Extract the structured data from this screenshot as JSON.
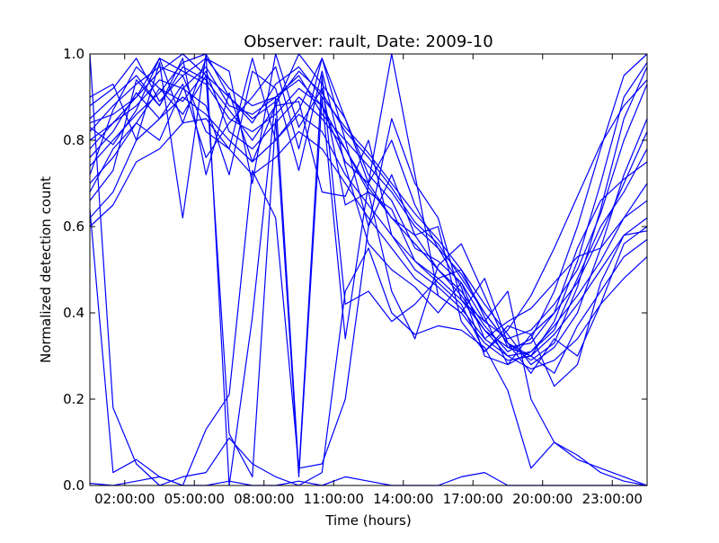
{
  "chart_data": {
    "type": "line",
    "title": "Observer: rault, Date: 2009-10",
    "xlabel": "Time (hours)",
    "ylabel": "Normalized detection count",
    "xlim": [
      0.5,
      24.5
    ],
    "ylim": [
      0,
      1
    ],
    "x_ticks": [
      {
        "x": 2,
        "label": "02:00:00"
      },
      {
        "x": 5,
        "label": "05:00:00"
      },
      {
        "x": 8,
        "label": "08:00:00"
      },
      {
        "x": 11,
        "label": "11:00:00"
      },
      {
        "x": 14,
        "label": "14:00:00"
      },
      {
        "x": 17,
        "label": "17:00:00"
      },
      {
        "x": 20,
        "label": "20:00:00"
      },
      {
        "x": 23,
        "label": "23:00:00"
      }
    ],
    "y_ticks": [
      {
        "y": 0,
        "label": "0.0"
      },
      {
        "y": 0.2,
        "label": "0.2"
      },
      {
        "y": 0.4,
        "label": "0.4"
      },
      {
        "y": 0.6,
        "label": "0.6"
      },
      {
        "y": 0.8,
        "label": "0.8"
      },
      {
        "y": 1,
        "label": "1.0"
      }
    ],
    "grid": false,
    "line_color": "#0000ff",
    "series": [
      {
        "x": [
          0.5,
          1.5,
          2.5,
          3.5,
          4.5,
          5.5,
          6.5,
          7.5,
          8.5,
          9.5,
          10.5,
          11.5,
          12.5,
          13.5,
          14.5,
          15.5,
          16.5,
          17.5,
          18.5,
          19.5,
          20.5,
          21.5,
          22.5,
          23.5,
          24.5
        ],
        "y": [
          0.82,
          0.88,
          0.93,
          0.97,
          0.95,
          0.99,
          0.92,
          0.88,
          0.9,
          0.95,
          0.86,
          0.8,
          0.74,
          0.68,
          0.6,
          0.55,
          0.49,
          0.4,
          0.33,
          0.3,
          0.38,
          0.52,
          0.7,
          0.9,
          0.98
        ]
      },
      {
        "x": [
          0.5,
          1.5,
          2.5,
          3.5,
          4.5,
          5.5,
          6.5,
          7.5,
          8.5,
          9.5,
          10.5,
          11.5,
          12.5,
          13.5,
          14.5,
          15.5,
          16.5,
          17.5,
          18.5,
          19.5,
          20.5,
          21.5,
          22.5,
          23.5,
          24.5
        ],
        "y": [
          0.78,
          0.84,
          0.9,
          0.99,
          0.96,
          0.93,
          0.85,
          0.82,
          0.86,
          0.92,
          0.88,
          0.75,
          0.7,
          0.62,
          0.58,
          0.5,
          0.45,
          0.37,
          0.31,
          0.34,
          0.45,
          0.6,
          0.78,
          0.95,
          1.0
        ]
      },
      {
        "x": [
          0.5,
          1.5,
          2.5,
          3.5,
          4.5,
          5.5,
          6.5,
          7.5,
          8.5,
          9.5,
          10.5,
          11.5,
          12.5,
          13.5,
          14.5,
          15.5,
          16.5,
          17.5,
          18.5,
          19.5,
          20.5,
          21.5,
          22.5,
          23.5,
          24.5
        ],
        "y": [
          0.74,
          0.8,
          0.86,
          0.91,
          0.98,
          1.0,
          0.9,
          0.84,
          0.93,
          0.97,
          0.9,
          0.83,
          0.77,
          0.7,
          0.63,
          0.57,
          0.5,
          0.42,
          0.35,
          0.28,
          0.32,
          0.4,
          0.55,
          0.72,
          0.85
        ]
      },
      {
        "x": [
          0.5,
          1.5,
          2.5,
          3.5,
          4.5,
          5.5,
          6.5,
          7.5,
          8.5,
          9.5,
          10.5,
          11.5,
          12.5,
          13.5,
          14.5,
          15.5,
          16.5,
          17.5,
          18.5,
          19.5,
          20.5,
          21.5,
          22.5,
          23.5,
          24.5
        ],
        "y": [
          0.85,
          0.9,
          0.95,
          0.88,
          0.97,
          0.94,
          0.87,
          0.8,
          0.88,
          1.0,
          0.93,
          0.85,
          0.72,
          0.66,
          0.55,
          0.52,
          0.47,
          0.38,
          0.34,
          0.36,
          0.42,
          0.5,
          0.63,
          0.8,
          0.93
        ]
      },
      {
        "x": [
          0.5,
          1.5,
          2.5,
          3.5,
          4.5,
          5.5,
          6.5,
          7.5,
          8.5,
          9.5,
          10.5,
          11.5,
          12.5,
          13.5,
          14.5,
          15.5,
          16.5,
          17.5,
          18.5,
          19.5,
          20.5,
          21.5,
          22.5,
          23.5,
          24.5
        ],
        "y": [
          0.7,
          0.76,
          0.84,
          0.92,
          0.89,
          0.96,
          0.82,
          0.78,
          0.84,
          0.9,
          0.85,
          0.78,
          0.68,
          0.64,
          0.52,
          0.48,
          0.43,
          0.36,
          0.32,
          0.33,
          0.4,
          0.47,
          0.58,
          0.7,
          0.82
        ]
      },
      {
        "x": [
          0.5,
          1.5,
          2.5,
          3.5,
          4.5,
          5.5,
          6.5,
          7.5,
          8.5,
          9.5,
          10.5,
          11.5,
          12.5,
          13.5,
          14.5,
          15.5,
          16.5,
          17.5,
          18.5,
          19.5,
          20.5,
          21.5,
          22.5,
          23.5,
          24.5
        ],
        "y": [
          0.62,
          0.68,
          0.8,
          0.85,
          0.9,
          0.86,
          0.8,
          0.75,
          0.8,
          0.86,
          0.82,
          0.72,
          0.65,
          0.58,
          0.5,
          0.46,
          0.41,
          0.34,
          0.3,
          0.31,
          0.37,
          0.44,
          0.52,
          0.62,
          0.7
        ]
      },
      {
        "x": [
          0.5,
          1.5,
          2.5,
          3.5,
          4.5,
          5.5,
          6.5,
          7.5,
          8.5,
          9.5,
          10.5,
          11.5,
          12.5,
          13.5,
          14.5,
          15.5,
          16.5,
          17.5,
          18.5,
          19.5,
          20.5,
          21.5,
          22.5,
          23.5,
          24.5
        ],
        "y": [
          0.6,
          0.65,
          0.75,
          0.78,
          0.84,
          0.85,
          0.78,
          0.72,
          0.76,
          0.82,
          0.78,
          0.7,
          0.62,
          0.55,
          0.48,
          0.44,
          0.4,
          0.33,
          0.29,
          0.3,
          0.35,
          0.42,
          0.5,
          0.58,
          0.62
        ]
      },
      {
        "x": [
          0.5,
          1.5,
          2.5,
          3.5,
          4.5,
          5.5,
          6.5,
          7.5,
          8.5,
          9.5,
          10.5,
          11.5,
          12.5,
          13.5,
          14.5,
          15.5,
          16.5,
          17.5,
          18.5,
          19.5,
          20.5,
          21.5,
          22.5,
          23.5,
          24.5
        ],
        "y": [
          0.8,
          0.84,
          0.88,
          0.94,
          0.92,
          0.97,
          0.88,
          0.86,
          0.9,
          0.94,
          0.88,
          0.78,
          0.69,
          0.62,
          0.56,
          0.5,
          0.44,
          0.36,
          0.3,
          0.27,
          0.29,
          0.34,
          0.42,
          0.48,
          0.53
        ]
      },
      {
        "x": [
          0.5,
          1.5,
          2.5,
          3.5,
          4.5,
          5.5,
          6.5,
          7.5,
          8.5,
          9.5,
          10.5,
          11.5,
          12.5,
          13.5,
          14.5,
          15.5,
          16.5,
          17.5,
          18.5,
          19.5,
          20.5,
          21.5,
          22.5,
          23.5,
          24.5
        ],
        "y": [
          0.84,
          0.86,
          0.9,
          0.96,
          1.0,
          0.95,
          0.9,
          0.85,
          0.89,
          0.96,
          0.91,
          0.82,
          0.76,
          0.69,
          0.61,
          0.56,
          0.48,
          0.4,
          0.33,
          0.29,
          0.33,
          0.46,
          0.64,
          0.85,
          0.97
        ]
      },
      {
        "x": [
          0.5,
          1.5,
          2.5,
          3.5,
          4.5,
          5.5,
          6.5,
          7.5,
          8.5,
          9.5,
          10.5,
          11.5,
          12.5,
          13.5,
          14.5,
          15.5,
          16.5,
          17.5,
          18.5,
          19.5,
          20.5,
          21.5,
          22.5,
          23.5,
          24.5
        ],
        "y": [
          1.0,
          0.18,
          0.05,
          0.0,
          0.02,
          0.03,
          0.11,
          0.05,
          0.02,
          0.0,
          0.03,
          0.45,
          0.55,
          0.4,
          0.35,
          0.37,
          0.36,
          0.32,
          0.22,
          0.04,
          0.1,
          0.07,
          0.03,
          0.01,
          0.0
        ]
      },
      {
        "x": [
          0.5,
          1.5,
          2.5,
          3.5,
          4.5,
          5.5,
          6.5,
          7.5,
          8.5,
          9.5,
          10.5,
          11.5,
          12.5,
          13.5,
          14.5,
          15.5,
          16.5,
          17.5,
          18.5,
          19.5,
          20.5,
          21.5,
          22.5,
          23.5,
          24.5
        ],
        "y": [
          0.005,
          0.0,
          0.01,
          0.02,
          0.0,
          0.0,
          0.01,
          0.0,
          0.0,
          0.01,
          0.0,
          0.02,
          0.01,
          0.0,
          0.0,
          0.0,
          0.02,
          0.03,
          0.0,
          0.0,
          0.0,
          0.0,
          0.0,
          0.0,
          0.0
        ]
      },
      {
        "x": [
          0.5,
          1.5,
          2.5,
          3.5,
          4.5,
          5.5,
          6.5,
          7.5,
          8.5,
          9.5,
          10.5,
          11.5,
          12.5,
          13.5,
          14.5,
          15.5,
          16.5,
          17.5,
          18.5,
          19.5,
          20.5,
          21.5,
          22.5,
          23.5,
          24.5
        ],
        "y": [
          0.64,
          0.03,
          0.06,
          0.02,
          0.0,
          0.13,
          0.21,
          0.73,
          0.62,
          0.04,
          0.05,
          0.2,
          0.6,
          0.85,
          0.7,
          0.62,
          0.43,
          0.38,
          0.45,
          0.2,
          0.1,
          0.06,
          0.04,
          0.02,
          0.0
        ]
      },
      {
        "x": [
          0.5,
          1.5,
          2.5,
          3.5,
          4.5,
          5.5,
          6.5,
          7.5,
          8.5,
          9.5,
          10.5,
          11.5,
          12.5,
          13.5,
          14.5,
          15.5,
          16.5,
          17.5,
          18.5,
          19.5,
          20.5,
          21.5,
          22.5,
          23.5,
          24.5
        ],
        "y": [
          0.9,
          0.93,
          0.8,
          0.98,
          0.62,
          1.0,
          0.0,
          0.39,
          0.9,
          0.03,
          0.95,
          0.42,
          0.45,
          0.38,
          0.42,
          0.48,
          0.5,
          0.39,
          0.28,
          0.35,
          0.23,
          0.28,
          0.47,
          0.58,
          0.59
        ]
      },
      {
        "x": [
          0.5,
          1.5,
          2.5,
          3.5,
          4.5,
          5.5,
          6.5,
          7.5,
          8.5,
          9.5,
          10.5,
          11.5,
          12.5,
          13.5,
          14.5,
          15.5,
          16.5,
          17.5,
          18.5,
          19.5,
          20.5,
          21.5,
          22.5,
          23.5,
          24.5
        ],
        "y": [
          0.72,
          0.87,
          0.97,
          0.92,
          0.86,
          0.95,
          0.12,
          0.02,
          0.85,
          0.02,
          0.9,
          0.34,
          0.7,
          1.0,
          0.72,
          0.44,
          0.4,
          0.48,
          0.33,
          0.26,
          0.34,
          0.3,
          0.42,
          0.56,
          0.6
        ]
      },
      {
        "x": [
          0.5,
          1.5,
          2.5,
          3.5,
          4.5,
          5.5,
          6.5,
          7.5,
          8.5,
          9.5,
          10.5,
          11.5,
          12.5,
          13.5,
          14.5,
          15.5,
          16.5,
          17.5,
          18.5,
          19.5,
          20.5,
          21.5,
          22.5,
          23.5,
          24.5
        ],
        "y": [
          0.88,
          0.92,
          0.99,
          0.89,
          0.95,
          0.82,
          0.78,
          0.99,
          0.8,
          0.87,
          0.99,
          0.8,
          0.6,
          0.72,
          0.58,
          0.6,
          0.38,
          0.31,
          0.37,
          0.35,
          0.4,
          0.55,
          0.66,
          0.71,
          0.75
        ]
      },
      {
        "x": [
          0.5,
          1.5,
          2.5,
          3.5,
          4.5,
          5.5,
          6.5,
          7.5,
          8.5,
          9.5,
          10.5,
          11.5,
          12.5,
          13.5,
          14.5,
          15.5,
          16.5,
          17.5,
          18.5,
          19.5,
          20.5,
          21.5,
          22.5,
          23.5,
          24.5
        ],
        "y": [
          0.76,
          0.82,
          0.91,
          0.85,
          0.93,
          0.76,
          0.84,
          0.9,
          0.97,
          0.78,
          0.99,
          0.85,
          0.7,
          0.8,
          0.65,
          0.55,
          0.46,
          0.3,
          0.28,
          0.31,
          0.36,
          0.48,
          0.6,
          0.68,
          0.78
        ]
      },
      {
        "x": [
          0.5,
          1.5,
          2.5,
          3.5,
          4.5,
          5.5,
          6.5,
          7.5,
          8.5,
          9.5,
          10.5,
          11.5,
          12.5,
          13.5,
          14.5,
          15.5,
          16.5,
          17.5,
          18.5,
          19.5,
          20.5,
          21.5,
          22.5,
          23.5,
          24.5
        ],
        "y": [
          0.68,
          0.78,
          0.84,
          0.8,
          0.92,
          0.88,
          0.72,
          0.96,
          0.92,
          0.73,
          0.96,
          0.74,
          0.56,
          0.5,
          0.46,
          0.4,
          0.47,
          0.34,
          0.38,
          0.41,
          0.47,
          0.53,
          0.55,
          0.62,
          0.66
        ]
      },
      {
        "x": [
          0.5,
          1.5,
          2.5,
          3.5,
          4.5,
          5.5,
          6.5,
          7.5,
          8.5,
          9.5,
          10.5,
          11.5,
          12.5,
          13.5,
          14.5,
          15.5,
          16.5,
          17.5,
          18.5,
          19.5,
          20.5,
          21.5,
          22.5,
          23.5,
          24.5
        ],
        "y": [
          0.83,
          0.79,
          0.87,
          0.99,
          0.84,
          0.99,
          0.96,
          0.7,
          1.0,
          0.83,
          0.92,
          0.65,
          0.68,
          0.45,
          0.34,
          0.51,
          0.56,
          0.44,
          0.32,
          0.3,
          0.26,
          0.37,
          0.45,
          0.53,
          0.57
        ]
      },
      {
        "x": [
          0.5,
          1.5,
          2.5,
          3.5,
          4.5,
          5.5,
          6.5,
          7.5,
          8.5,
          9.5,
          10.5,
          11.5,
          12.5,
          13.5,
          14.5,
          15.5,
          16.5,
          17.5,
          18.5,
          19.5,
          20.5,
          21.5,
          22.5,
          23.5,
          24.5
        ],
        "y": [
          0.66,
          0.73,
          0.94,
          0.88,
          0.99,
          0.72,
          0.91,
          0.75,
          0.88,
          0.89,
          0.68,
          0.67,
          0.8,
          0.58,
          0.52,
          0.47,
          0.42,
          0.31,
          0.36,
          0.44,
          0.55,
          0.67,
          0.79,
          0.88,
          0.94
        ]
      }
    ]
  }
}
